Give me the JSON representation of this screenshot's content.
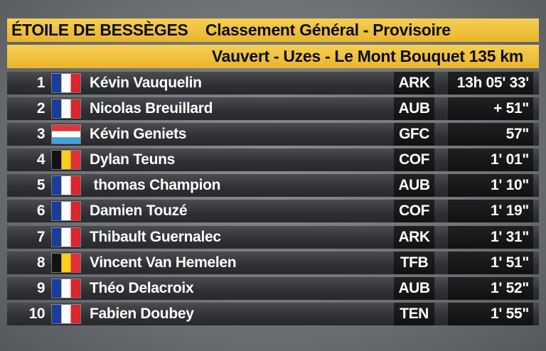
{
  "header": {
    "race": "ÉTOILE DE BESSÈGES",
    "classification": "Classement Général - Provisoire",
    "stage": "Vauvert - Uzes - Le Mont Bouquet 135 km"
  },
  "rows": [
    {
      "rank": "1",
      "flag": "france-flag-icon",
      "name": "Kévin Vauquelin",
      "team": "ARK",
      "time": "13h 05' 33'"
    },
    {
      "rank": "2",
      "flag": "france-flag-icon",
      "name": "Nicolas Breuillard",
      "team": "AUB",
      "time": "+ 51\""
    },
    {
      "rank": "3",
      "flag": "luxembourg-flag-icon",
      "name": "Kévin Geniets",
      "team": "GFC",
      "time": "57\""
    },
    {
      "rank": "4",
      "flag": "belgium-flag-icon",
      "name": "Dylan Teuns",
      "team": "COF",
      "time": "1' 01\""
    },
    {
      "rank": "5",
      "flag": "france-flag-icon",
      "name": " thomas Champion",
      "team": "AUB",
      "time": "1' 10\""
    },
    {
      "rank": "6",
      "flag": "france-flag-icon",
      "name": "Damien Touzé",
      "team": "COF",
      "time": "1' 19\""
    },
    {
      "rank": "7",
      "flag": "france-flag-icon",
      "name": "Thibault Guernalec",
      "team": "ARK",
      "time": "1' 31\""
    },
    {
      "rank": "8",
      "flag": "belgium-flag-icon",
      "name": "Vincent Van Hemelen",
      "team": "TFB",
      "time": "1' 51\""
    },
    {
      "rank": "9",
      "flag": "france-flag-icon",
      "name": "Théo Delacroix",
      "team": "AUB",
      "time": "1' 52\""
    },
    {
      "rank": "10",
      "flag": "france-flag-icon",
      "name": "Fabien Doubey",
      "team": "TEN",
      "time": "1' 55\""
    }
  ],
  "colors": {
    "banner": "#f1c43f",
    "row": "#333538",
    "cell": "#161718",
    "text": "#ffffff"
  }
}
